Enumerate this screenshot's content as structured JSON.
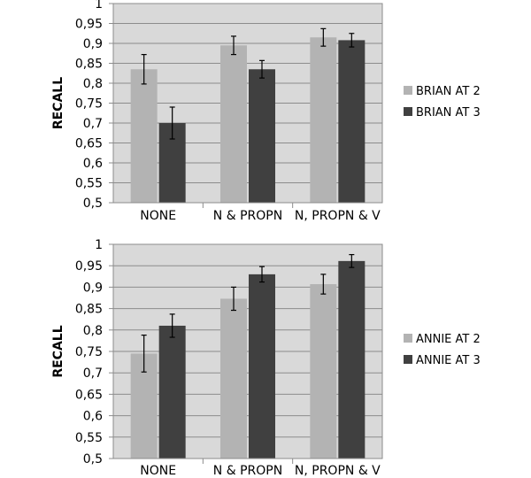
{
  "chart_data": [
    {
      "type": "bar",
      "title": "",
      "xlabel": "",
      "ylabel": "RECALL",
      "ylim": [
        0.5,
        1
      ],
      "ytick_step": 0.05,
      "ytick_labels": [
        "0,5",
        "0,55",
        "0,6",
        "0,65",
        "0,7",
        "0,75",
        "0,8",
        "0,85",
        "0,9",
        "0,95",
        "1"
      ],
      "categories": [
        "NONE",
        "N & PROPN",
        "N, PROPN & V"
      ],
      "grid": true,
      "legend_position": "right",
      "series": [
        {
          "name": "BRIAN AT 2",
          "color": "#b3b3b3",
          "values": [
            0.835,
            0.895,
            0.915
          ],
          "error": [
            0.037,
            0.023,
            0.022
          ]
        },
        {
          "name": "BRIAN AT 3",
          "color": "#404040",
          "values": [
            0.7,
            0.835,
            0.908
          ],
          "error": [
            0.04,
            0.022,
            0.017
          ]
        }
      ]
    },
    {
      "type": "bar",
      "title": "",
      "xlabel": "",
      "ylabel": "RECALL",
      "ylim": [
        0.5,
        1
      ],
      "ytick_step": 0.05,
      "ytick_labels": [
        "0,5",
        "0,55",
        "0,6",
        "0,65",
        "0,7",
        "0,75",
        "0,8",
        "0,85",
        "0,9",
        "0,95",
        "1"
      ],
      "categories": [
        "NONE",
        "N & PROPN",
        "N, PROPN & V"
      ],
      "grid": true,
      "legend_position": "right",
      "series": [
        {
          "name": "ANNIE AT 2",
          "color": "#b3b3b3",
          "values": [
            0.745,
            0.873,
            0.907
          ],
          "error": [
            0.043,
            0.027,
            0.023
          ]
        },
        {
          "name": "ANNIE AT 3",
          "color": "#404040",
          "values": [
            0.81,
            0.93,
            0.961
          ],
          "error": [
            0.027,
            0.018,
            0.015
          ]
        }
      ]
    }
  ]
}
